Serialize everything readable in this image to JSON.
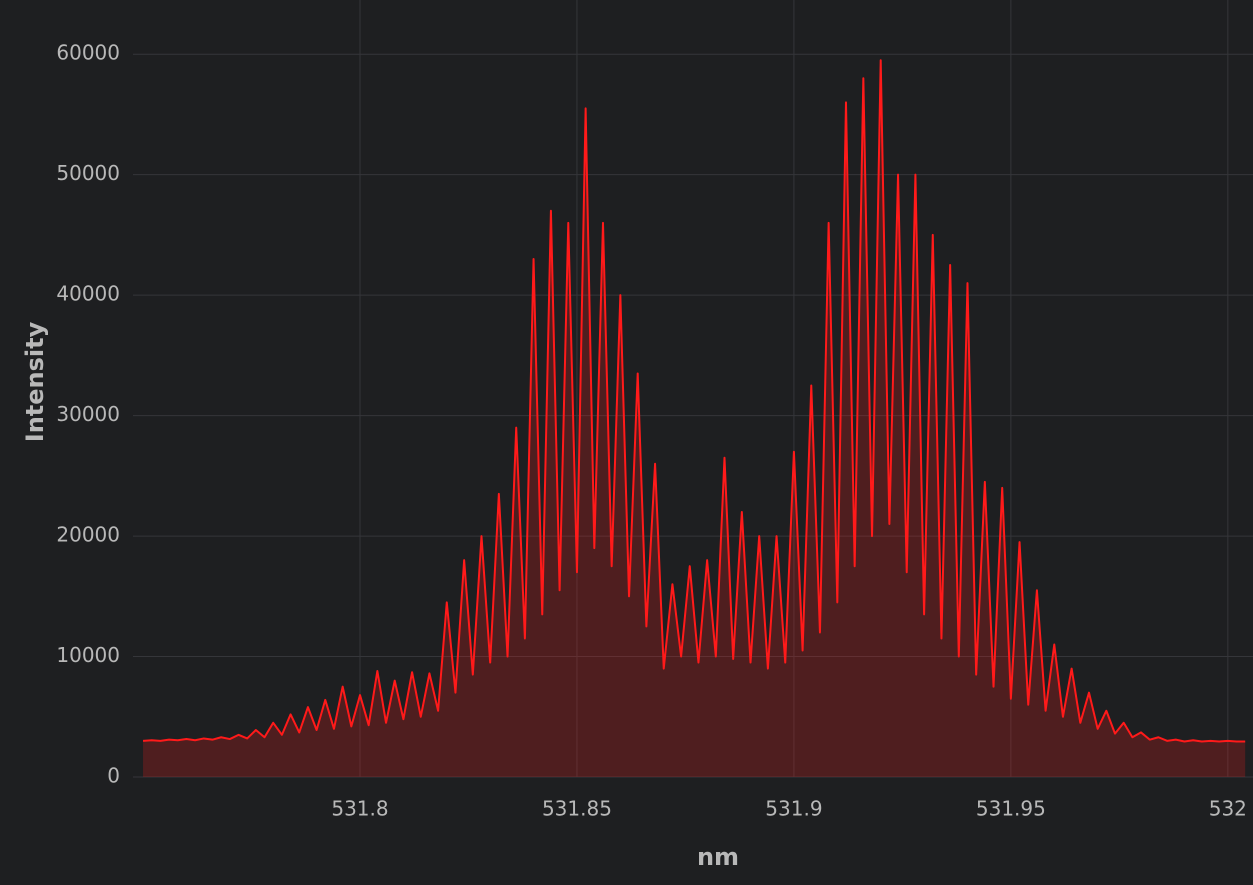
{
  "chart_data": {
    "type": "area",
    "x_label": "nm",
    "y_label": "Intensity",
    "color": "#ff1a1a",
    "grid": true,
    "xlim": [
      531.7493,
      532.0058
    ],
    "ylim": [
      0,
      64500
    ],
    "xticks": [
      531.8,
      531.85,
      531.9,
      531.95,
      532
    ],
    "yticks": [
      0,
      10000,
      20000,
      30000,
      40000,
      50000,
      60000
    ],
    "x": [
      531.75,
      531.752,
      531.754,
      531.756,
      531.758,
      531.76,
      531.762,
      531.764,
      531.766,
      531.768,
      531.77,
      531.772,
      531.774,
      531.776,
      531.778,
      531.78,
      531.782,
      531.784,
      531.786,
      531.788,
      531.79,
      531.792,
      531.794,
      531.796,
      531.798,
      531.8,
      531.802,
      531.804,
      531.806,
      531.808,
      531.81,
      531.812,
      531.814,
      531.816,
      531.818,
      531.82,
      531.822,
      531.824,
      531.826,
      531.828,
      531.83,
      531.832,
      531.834,
      531.836,
      531.838,
      531.84,
      531.842,
      531.844,
      531.846,
      531.848,
      531.85,
      531.852,
      531.854,
      531.856,
      531.858,
      531.86,
      531.862,
      531.864,
      531.866,
      531.868,
      531.87,
      531.872,
      531.874,
      531.876,
      531.878,
      531.88,
      531.882,
      531.884,
      531.886,
      531.888,
      531.89,
      531.892,
      531.894,
      531.896,
      531.898,
      531.9,
      531.902,
      531.904,
      531.906,
      531.908,
      531.91,
      531.912,
      531.914,
      531.916,
      531.918,
      531.92,
      531.922,
      531.924,
      531.926,
      531.928,
      531.93,
      531.932,
      531.934,
      531.936,
      531.938,
      531.94,
      531.942,
      531.944,
      531.946,
      531.948,
      531.95,
      531.952,
      531.954,
      531.956,
      531.958,
      531.96,
      531.962,
      531.964,
      531.966,
      531.968,
      531.97,
      531.972,
      531.974,
      531.976,
      531.978,
      531.98,
      531.982,
      531.984,
      531.986,
      531.988,
      531.99,
      531.992,
      531.994,
      531.996,
      531.998,
      532.0,
      532.002,
      532.004
    ],
    "values": [
      3000,
      3050,
      3000,
      3100,
      3050,
      3150,
      3050,
      3200,
      3100,
      3300,
      3150,
      3500,
      3200,
      3900,
      3300,
      4500,
      3500,
      5200,
      3700,
      5800,
      3900,
      6400,
      4000,
      7500,
      4200,
      6800,
      4300,
      8800,
      4500,
      8000,
      4800,
      8700,
      5000,
      8600,
      5500,
      14500,
      7000,
      18000,
      8500,
      20000,
      9500,
      23500,
      10000,
      29000,
      11500,
      43000,
      13500,
      47000,
      15500,
      46000,
      17000,
      55500,
      19000,
      46000,
      17500,
      40000,
      15000,
      33500,
      12500,
      26000,
      9000,
      16000,
      10000,
      17500,
      9500,
      18000,
      10000,
      26500,
      9800,
      22000,
      9500,
      20000,
      9000,
      20000,
      9500,
      27000,
      10500,
      32500,
      12000,
      46000,
      14500,
      56000,
      17500,
      58000,
      20000,
      59500,
      21000,
      50000,
      17000,
      50000,
      13500,
      45000,
      11500,
      42500,
      10000,
      41000,
      8500,
      24500,
      7500,
      24000,
      6500,
      19500,
      6000,
      15500,
      5500,
      11000,
      5000,
      9000,
      4500,
      7000,
      4000,
      5500,
      3600,
      4500,
      3300,
      3700,
      3100,
      3300,
      3000,
      3100,
      2950,
      3050,
      2950,
      3000,
      2950,
      3000,
      2950,
      2950
    ]
  }
}
